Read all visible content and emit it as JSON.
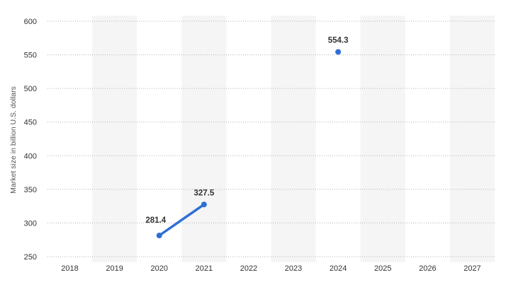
{
  "chart_data": {
    "type": "line",
    "title": "",
    "xlabel": "",
    "ylabel": "Market size in billion U.S. dollars",
    "categories": [
      "2018",
      "2019",
      "2020",
      "2021",
      "2022",
      "2023",
      "2024",
      "2025",
      "2026",
      "2027"
    ],
    "yticks": [
      "250",
      "300",
      "350",
      "400",
      "450",
      "500",
      "550",
      "600"
    ],
    "ylim": [
      250,
      600
    ],
    "grid": true,
    "legend": "none",
    "series": [
      {
        "values": [
          null,
          null,
          281.4,
          327.5,
          null,
          null,
          554.3,
          null,
          null,
          null
        ],
        "labels": [
          "",
          "",
          "281.4",
          "327.5",
          "",
          "",
          "554.3",
          "",
          "",
          ""
        ],
        "color": "#2e6fd4"
      }
    ]
  },
  "colors": {
    "band": "#f5f5f5",
    "grid": "#b3b3b3",
    "line": "#2e6fd4"
  }
}
